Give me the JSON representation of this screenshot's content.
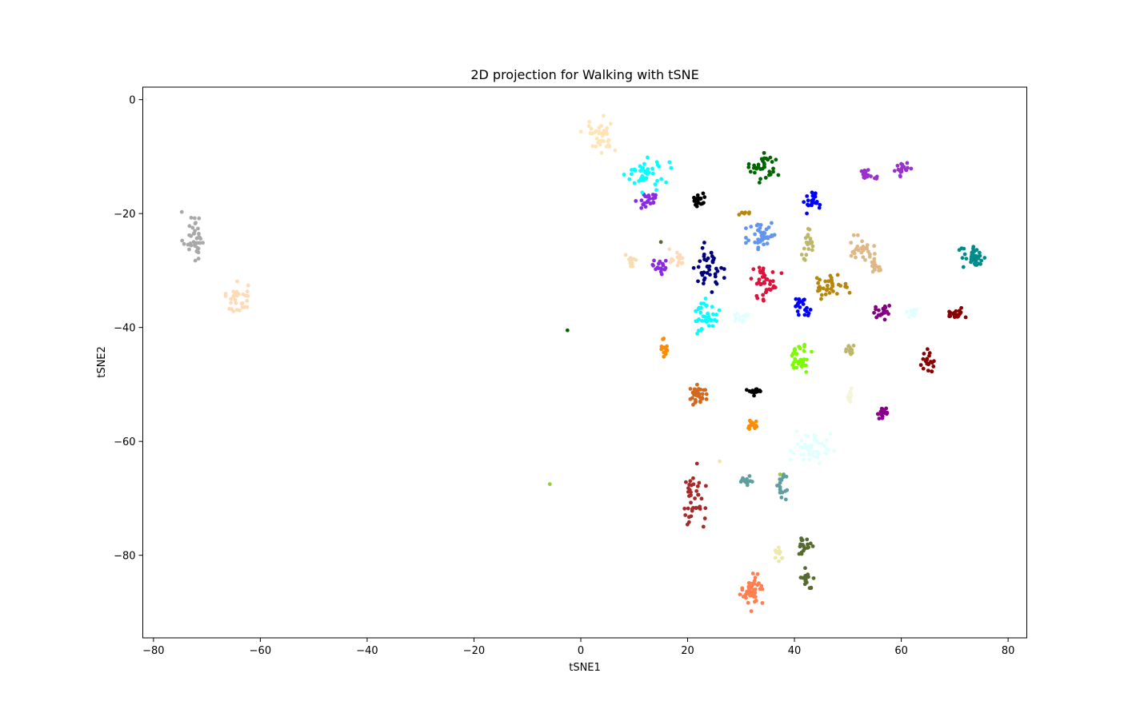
{
  "chart_data": {
    "type": "scatter",
    "title": "2D projection for Walking with tSNE",
    "xlabel": "tSNE1",
    "ylabel": "tSNE2",
    "xlim": [
      -82,
      83.5
    ],
    "ylim": [
      -94.5,
      2.2
    ],
    "xticks": [
      -80,
      -60,
      -40,
      -20,
      0,
      20,
      40,
      60,
      80
    ],
    "yticks": [
      0,
      -20,
      -40,
      -60,
      -80
    ],
    "grid": false,
    "legend": "none",
    "clusters": [
      {
        "color": "#a9a9a9",
        "cx": -72.5,
        "cy": -24.0,
        "sx": 1.0,
        "sy": 2.2,
        "n": 40
      },
      {
        "color": "#ffdab9",
        "cx": -64.3,
        "cy": -35.0,
        "sx": 1.0,
        "sy": 1.4,
        "n": 35
      },
      {
        "color": "#ffe4b5",
        "cx": 3.5,
        "cy": -6.0,
        "sx": 1.6,
        "sy": 1.6,
        "n": 40
      },
      {
        "color": "#00ffff",
        "cx": 12.5,
        "cy": -13.0,
        "sx": 2.0,
        "sy": 1.3,
        "n": 40
      },
      {
        "color": "#8a2be2",
        "cx": 12.5,
        "cy": -17.5,
        "sx": 1.0,
        "sy": 0.7,
        "n": 22
      },
      {
        "color": "#000000",
        "cx": 22.0,
        "cy": -17.5,
        "sx": 0.7,
        "sy": 0.8,
        "n": 22
      },
      {
        "color": "#006400",
        "cx": 34.5,
        "cy": -12.0,
        "sx": 1.4,
        "sy": 1.2,
        "n": 35
      },
      {
        "color": "#0000ff",
        "cx": 43.5,
        "cy": -18.0,
        "sx": 0.8,
        "sy": 0.9,
        "n": 22
      },
      {
        "color": "#9932cc",
        "cx": 53.7,
        "cy": -13.0,
        "sx": 0.8,
        "sy": 0.5,
        "n": 18
      },
      {
        "color": "#9932cc",
        "cx": 60.3,
        "cy": -12.3,
        "sx": 0.7,
        "sy": 0.6,
        "n": 18
      },
      {
        "color": "#b8860b",
        "cx": 30.5,
        "cy": -20.0,
        "sx": 0.5,
        "sy": 0.2,
        "n": 6
      },
      {
        "color": "#6495ed",
        "cx": 34.0,
        "cy": -23.8,
        "sx": 1.4,
        "sy": 1.6,
        "n": 42
      },
      {
        "color": "#bdb76b",
        "cx": 42.5,
        "cy": -25.5,
        "sx": 0.7,
        "sy": 1.5,
        "n": 22
      },
      {
        "color": "#deb887",
        "cx": 52.5,
        "cy": -26.0,
        "sx": 1.3,
        "sy": 1.0,
        "n": 28
      },
      {
        "color": "#deb887",
        "cx": 55.5,
        "cy": -29.0,
        "sx": 0.6,
        "sy": 1.0,
        "n": 16
      },
      {
        "color": "#008b8b",
        "cx": 73.5,
        "cy": -27.8,
        "sx": 1.2,
        "sy": 0.9,
        "n": 42
      },
      {
        "color": "#f5deb3",
        "cx": 9.5,
        "cy": -28.0,
        "sx": 0.5,
        "sy": 0.7,
        "n": 16
      },
      {
        "color": "#ffdab9",
        "cx": 18.0,
        "cy": -27.8,
        "sx": 1.0,
        "sy": 0.7,
        "n": 16
      },
      {
        "color": "#8a2be2",
        "cx": 15.0,
        "cy": -29.5,
        "sx": 0.7,
        "sy": 0.7,
        "n": 18
      },
      {
        "color": "#000080",
        "cx": 24.0,
        "cy": -29.5,
        "sx": 1.3,
        "sy": 2.0,
        "n": 40
      },
      {
        "color": "#dc143c",
        "cx": 34.5,
        "cy": -32.0,
        "sx": 1.4,
        "sy": 1.5,
        "n": 40
      },
      {
        "color": "#b8860b",
        "cx": 46.5,
        "cy": -32.5,
        "sx": 1.8,
        "sy": 0.9,
        "n": 35
      },
      {
        "color": "#0000ff",
        "cx": 41.3,
        "cy": -36.3,
        "sx": 0.8,
        "sy": 0.8,
        "n": 22
      },
      {
        "color": "#800080",
        "cx": 56.5,
        "cy": -37.5,
        "sx": 0.9,
        "sy": 0.6,
        "n": 20
      },
      {
        "color": "#e0ffff",
        "cx": 62.0,
        "cy": -37.5,
        "sx": 0.6,
        "sy": 0.5,
        "n": 10
      },
      {
        "color": "#8b0000",
        "cx": 70.3,
        "cy": -37.5,
        "sx": 0.8,
        "sy": 0.6,
        "n": 22
      },
      {
        "color": "#00ffff",
        "cx": 23.5,
        "cy": -38.0,
        "sx": 1.1,
        "sy": 1.4,
        "n": 38
      },
      {
        "color": "#e0ffff",
        "cx": 30.0,
        "cy": -38.0,
        "sx": 0.6,
        "sy": 0.8,
        "n": 12
      },
      {
        "color": "#ff8c00",
        "cx": 15.7,
        "cy": -43.5,
        "sx": 0.3,
        "sy": 0.9,
        "n": 14
      },
      {
        "color": "#7cfc00",
        "cx": 41.0,
        "cy": -45.5,
        "sx": 1.0,
        "sy": 1.2,
        "n": 35
      },
      {
        "color": "#bdb76b",
        "cx": 50.5,
        "cy": -43.7,
        "sx": 0.6,
        "sy": 0.6,
        "n": 14
      },
      {
        "color": "#8b0000",
        "cx": 65.0,
        "cy": -46.0,
        "sx": 0.6,
        "sy": 1.0,
        "n": 20
      },
      {
        "color": "#d2691e",
        "cx": 22.0,
        "cy": -51.8,
        "sx": 1.0,
        "sy": 0.8,
        "n": 35
      },
      {
        "color": "#000000",
        "cx": 32.5,
        "cy": -51.3,
        "sx": 0.7,
        "sy": 0.3,
        "n": 20
      },
      {
        "color": "#f5f5dc",
        "cx": 50.5,
        "cy": -52.0,
        "sx": 0.5,
        "sy": 0.6,
        "n": 12
      },
      {
        "color": "#8b008b",
        "cx": 56.5,
        "cy": -55.0,
        "sx": 0.6,
        "sy": 0.5,
        "n": 18
      },
      {
        "color": "#ff8c00",
        "cx": 32.5,
        "cy": -57.0,
        "sx": 0.5,
        "sy": 0.5,
        "n": 14
      },
      {
        "color": "#e0ffff",
        "cx": 43.0,
        "cy": -61.5,
        "sx": 2.0,
        "sy": 1.5,
        "n": 50
      },
      {
        "color": "#5f9ea0",
        "cx": 31.0,
        "cy": -66.8,
        "sx": 0.5,
        "sy": 0.4,
        "n": 12
      },
      {
        "color": "#5f9ea0",
        "cx": 37.5,
        "cy": -68.0,
        "sx": 0.5,
        "sy": 1.0,
        "n": 18
      },
      {
        "color": "#a52a2a",
        "cx": 21.0,
        "cy": -70.5,
        "sx": 1.1,
        "sy": 3.0,
        "n": 40
      },
      {
        "color": "#eee8aa",
        "cx": 37.0,
        "cy": -80.0,
        "sx": 0.6,
        "sy": 0.7,
        "n": 14
      },
      {
        "color": "#556b2f",
        "cx": 42.2,
        "cy": -78.0,
        "sx": 0.6,
        "sy": 0.8,
        "n": 18
      },
      {
        "color": "#556b2f",
        "cx": 42.5,
        "cy": -84.0,
        "sx": 0.6,
        "sy": 0.8,
        "n": 18
      },
      {
        "color": "#ff7f50",
        "cx": 32.0,
        "cy": -86.5,
        "sx": 1.0,
        "sy": 1.5,
        "n": 45
      }
    ],
    "points": [
      {
        "color": "#006400",
        "x": -2.5,
        "y": -40.5
      },
      {
        "color": "#9acd32",
        "x": -5.8,
        "y": -67.5
      },
      {
        "color": "#556b2f",
        "x": 15.0,
        "y": -25.0
      },
      {
        "color": "#eee8aa",
        "x": 26.0,
        "y": -63.5
      },
      {
        "color": "#9acd32",
        "x": 37.3,
        "y": -65.8
      },
      {
        "color": "#b8860b",
        "x": 45.0,
        "y": -35.0
      },
      {
        "color": "#00ffff",
        "x": 11.5,
        "y": -16.3
      },
      {
        "color": "#b8860b",
        "x": 31.5,
        "y": -20.0
      }
    ]
  }
}
